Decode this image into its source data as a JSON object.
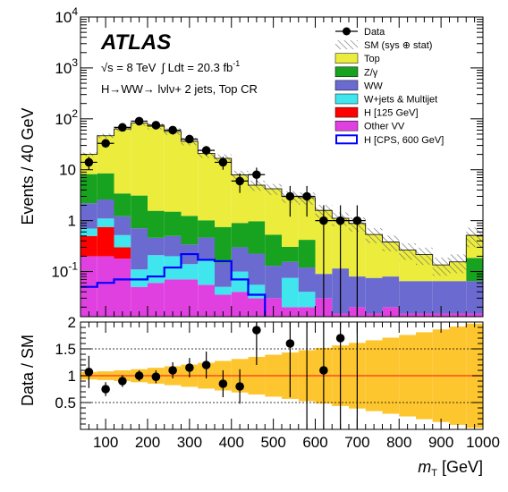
{
  "chart_data": {
    "type": "bar",
    "experiment": "ATLAS",
    "energy_label": "√s = 8 TeV",
    "lumi_label": "∫ Ldt =  20.3 fb",
    "lumi_exp": "-1",
    "channel_label": "H→WW→ lνlν+ 2 jets, Top CR",
    "xlabel": "m",
    "xlabel_sub": "T",
    "xlabel_unit": " [GeV]",
    "ylabel_top": "Events / 40 GeV",
    "ylabel_bottom": "Data / SM",
    "xlim": [
      40,
      1000
    ],
    "ylim_top": [
      0.013,
      10000
    ],
    "ylim_bottom": [
      0,
      2
    ],
    "yscale_top": "log",
    "x_tick_labels": [
      "100",
      "200",
      "300",
      "400",
      "500",
      "600",
      "700",
      "800",
      "900",
      "1000"
    ],
    "y_tick_labels_top": [
      {
        "value": 0.1,
        "label": "10",
        "exp": "-1"
      },
      {
        "value": 1,
        "label": "1",
        "exp": ""
      },
      {
        "value": 10,
        "label": "10",
        "exp": ""
      },
      {
        "value": 100,
        "label": "10",
        "exp": "2"
      },
      {
        "value": 1000,
        "label": "10",
        "exp": "3"
      },
      {
        "value": 10000,
        "label": "10",
        "exp": "4"
      }
    ],
    "y_tick_labels_bottom": [
      "0.5",
      "1",
      "1.5",
      "2"
    ],
    "legend_placement": "top-right",
    "legend": [
      {
        "label": "Data",
        "type": "marker",
        "color": "#000000"
      },
      {
        "label": "SM (sys ⊕ stat)",
        "type": "hatch",
        "color": "#777777"
      },
      {
        "label": "Top",
        "type": "fill",
        "color": "#ecec3c"
      },
      {
        "label": "Z/γ",
        "type": "fill",
        "color": "#17a31f"
      },
      {
        "label": "WW",
        "type": "fill",
        "color": "#6a6ad0"
      },
      {
        "label": "W+jets & Multijet",
        "type": "fill",
        "color": "#40e6ee"
      },
      {
        "label": "H [125 GeV]",
        "type": "fill",
        "color": "#ff0000"
      },
      {
        "label": "Other VV",
        "type": "fill",
        "color": "#e040e0"
      },
      {
        "label": "H [CPS, 600 GeV]",
        "type": "line",
        "color": "#0000ff"
      }
    ],
    "bins_low": [
      40,
      80,
      120,
      160,
      200,
      240,
      280,
      320,
      360,
      400,
      440,
      480,
      520,
      560,
      600,
      640,
      680,
      720,
      760,
      800,
      840,
      880,
      920,
      960
    ],
    "stack_order": [
      "Other VV",
      "H [125 GeV]",
      "W+jets & Multijet",
      "WW",
      "Z/γ",
      "Top"
    ],
    "series": [
      {
        "name": "Other VV",
        "color": "#e040e0",
        "values": [
          0.2,
          0.2,
          0.18,
          0.05,
          0.06,
          0.07,
          0.07,
          0.055,
          0.035,
          0.04,
          0.03,
          0.03,
          0.02,
          0.02,
          0.03,
          0.015,
          0.02,
          0.015,
          0.02,
          0.015,
          0.015,
          0.015,
          0.015,
          0.015
        ]
      },
      {
        "name": "H [125 GeV]",
        "color": "#ff0000",
        "values": [
          0.3,
          0.55,
          0.12,
          0,
          0,
          0,
          0,
          0,
          0,
          0,
          0,
          0,
          0,
          0,
          0,
          0,
          0,
          0,
          0,
          0,
          0,
          0,
          0,
          0
        ]
      },
      {
        "name": "W+jets & Multijet",
        "color": "#40e6ee",
        "values": [
          0.2,
          0.35,
          0.22,
          0.06,
          0.15,
          0.13,
          0.07,
          0.11,
          0.015,
          0.06,
          0.025,
          0,
          0.055,
          0.02,
          0,
          0,
          0,
          0,
          0,
          0,
          0,
          0,
          0,
          0
        ]
      },
      {
        "name": "WW",
        "color": "#6a6ad0",
        "values": [
          1.5,
          1.5,
          0.7,
          0.6,
          0.25,
          0.3,
          0.2,
          0.3,
          0.1,
          0.2,
          0.17,
          0.1,
          0.08,
          0.08,
          0.06,
          0.1,
          0.06,
          0.06,
          0.06,
          0.05,
          0.05,
          0.05,
          0.05,
          0.05
        ]
      },
      {
        "name": "Z/γ",
        "color": "#17a31f",
        "values": [
          6,
          5.9,
          2.2,
          2.4,
          1.1,
          1.0,
          0.9,
          0.55,
          0.6,
          0.6,
          0.75,
          0.4,
          0.15,
          0.3,
          0,
          0,
          0,
          0,
          0,
          0,
          0,
          0,
          0,
          0.12
        ]
      },
      {
        "name": "Top",
        "color": "#ecec3c",
        "values": [
          12,
          38,
          60,
          80,
          70,
          55,
          35,
          20,
          16,
          7,
          4,
          3.7,
          2.7,
          2.4,
          1.5,
          1.0,
          0.8,
          0.46,
          0.3,
          0.2,
          0.15,
          0.07,
          0.09,
          0.33
        ]
      }
    ],
    "signal": {
      "name": "H [CPS, 600 GeV]",
      "color": "#0000ff",
      "values": [
        0.05,
        0.06,
        0.07,
        0.07,
        0.08,
        0.12,
        0.22,
        0.17,
        0.16,
        0.07,
        0.035,
        0.012,
        0.005,
        0.003,
        0.003,
        0.003,
        0.002,
        0.002,
        0.002,
        0.002,
        0.002,
        0.002,
        0.002,
        0.002
      ]
    },
    "data": [
      {
        "x": 60,
        "y": 14,
        "err": 4,
        "ratio": 1.07,
        "rerr": 0.3
      },
      {
        "x": 100,
        "y": 33,
        "err": 6,
        "ratio": 0.75,
        "rerr": 0.13
      },
      {
        "x": 140,
        "y": 68,
        "err": 8,
        "ratio": 0.9,
        "rerr": 0.11
      },
      {
        "x": 180,
        "y": 90,
        "err": 10,
        "ratio": 1.0,
        "rerr": 0.1
      },
      {
        "x": 220,
        "y": 75,
        "err": 9,
        "ratio": 0.98,
        "rerr": 0.12
      },
      {
        "x": 260,
        "y": 60,
        "err": 8,
        "ratio": 1.1,
        "rerr": 0.15
      },
      {
        "x": 300,
        "y": 40,
        "err": 6,
        "ratio": 1.15,
        "rerr": 0.18
      },
      {
        "x": 340,
        "y": 24,
        "err": 5,
        "ratio": 1.2,
        "rerr": 0.25
      },
      {
        "x": 380,
        "y": 14,
        "err": 4,
        "ratio": 0.85,
        "rerr": 0.25
      },
      {
        "x": 420,
        "y": 6,
        "err": 2.5,
        "ratio": 0.8,
        "rerr": 0.32
      },
      {
        "x": 460,
        "y": 8,
        "err": 3,
        "ratio": 1.85,
        "rerr": 0.65
      },
      {
        "x": 540,
        "y": 3,
        "err": 1.8,
        "ratio": 1.6,
        "rerr": 1.0
      },
      {
        "x": 580,
        "y": 3,
        "err": 1.8,
        "ratio": null,
        "rerr": null
      },
      {
        "x": 620,
        "y": 1,
        "err": 1,
        "ratio": 1.1,
        "rerr": 1.2
      },
      {
        "x": 660,
        "y": 1,
        "err": 1,
        "ratio": 1.7,
        "rerr": 1.7
      },
      {
        "x": 700,
        "y": 1,
        "err": 1,
        "ratio": null,
        "rerr": null
      }
    ]
  }
}
